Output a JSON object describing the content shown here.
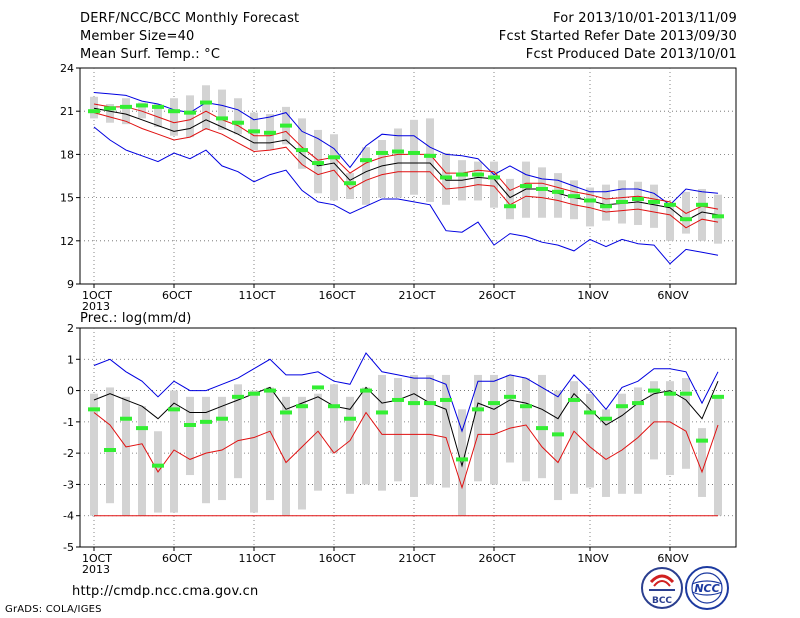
{
  "header": {
    "left_line1": "DERF/NCC/BCC Monthly Forecast",
    "left_line2": "Member Size=40",
    "left_line3": "Mean Surf. Temp.: °C",
    "right_line1": "For 2013/10/01-2013/11/09",
    "right_line2": "Fcst Started Refer Date 2013/09/30",
    "right_line3": "Fcst Produced Date 2013/10/01"
  },
  "precip_label": "Prec.: log(mm/d)",
  "url": "http://cmdp.ncc.cma.gov.cn",
  "grads_credit": "GrADS: COLA/IGES",
  "logos": {
    "bcc": "BCC",
    "ncc": "NCC"
  },
  "colors": {
    "bar": "#d3d3d3",
    "mean": "#000000",
    "spread": "#e01010",
    "envelope": "#0000e0",
    "obs": "#33ee33",
    "grid": "#666666"
  },
  "chart_data": [
    {
      "type": "line",
      "title": "Mean Surf. Temp.: °C",
      "ylim": [
        9,
        24
      ],
      "yticks": [
        9,
        12,
        15,
        18,
        21,
        24
      ],
      "xtick_labels": [
        "1OCT",
        "6OCT",
        "11OCT",
        "16OCT",
        "21OCT",
        "26OCT",
        "1NOV",
        "6NOV"
      ],
      "xtick_days": [
        1,
        6,
        11,
        16,
        21,
        26,
        32,
        37
      ],
      "year_label": "2013",
      "grid": true,
      "days": [
        1,
        2,
        3,
        4,
        5,
        6,
        7,
        8,
        9,
        10,
        11,
        12,
        13,
        14,
        15,
        16,
        17,
        18,
        19,
        20,
        21,
        22,
        23,
        24,
        25,
        26,
        27,
        28,
        29,
        30,
        31,
        32,
        33,
        34,
        35,
        36,
        37,
        38,
        39,
        40
      ],
      "series": [
        {
          "role": "mean",
          "values": [
            21.2,
            21.0,
            20.8,
            20.4,
            20.0,
            19.6,
            19.8,
            20.4,
            19.9,
            19.4,
            18.8,
            18.8,
            19.0,
            18.0,
            17.2,
            17.4,
            16.2,
            16.8,
            17.2,
            17.4,
            17.4,
            17.4,
            16.2,
            16.2,
            16.4,
            16.3,
            15.0,
            15.6,
            15.6,
            15.3,
            15.0,
            14.8,
            14.5,
            14.6,
            14.7,
            14.5,
            14.3,
            13.4,
            14.0,
            13.8
          ]
        },
        {
          "role": "spread_upper",
          "values": [
            21.5,
            21.3,
            21.3,
            21.0,
            20.6,
            20.2,
            20.4,
            21.0,
            20.4,
            20.0,
            19.3,
            19.3,
            19.6,
            18.5,
            17.6,
            17.8,
            16.7,
            17.4,
            17.8,
            18.0,
            18.0,
            18.0,
            16.7,
            16.7,
            16.9,
            16.8,
            15.5,
            16.0,
            16.0,
            15.7,
            15.4,
            15.2,
            14.9,
            15.0,
            15.1,
            14.9,
            14.7,
            13.9,
            14.4,
            14.2
          ]
        },
        {
          "role": "spread_lower",
          "values": [
            20.9,
            20.6,
            20.3,
            19.8,
            19.4,
            19.0,
            19.2,
            19.8,
            19.4,
            18.8,
            18.2,
            18.3,
            18.5,
            17.3,
            16.6,
            16.9,
            15.6,
            16.2,
            16.6,
            16.8,
            16.8,
            16.8,
            15.6,
            15.7,
            15.9,
            15.8,
            14.5,
            15.1,
            15.0,
            14.8,
            14.5,
            14.3,
            14.0,
            14.1,
            14.2,
            14.0,
            13.8,
            12.9,
            13.5,
            13.3
          ]
        },
        {
          "role": "envelope_max",
          "values": [
            22.3,
            22.2,
            22.1,
            21.7,
            21.5,
            21.1,
            20.9,
            21.6,
            21.4,
            21.1,
            20.4,
            20.6,
            20.9,
            19.6,
            19.1,
            18.4,
            17.1,
            18.6,
            19.4,
            19.3,
            19.3,
            18.5,
            18.0,
            17.9,
            17.7,
            16.6,
            17.2,
            16.6,
            16.3,
            16.2,
            15.8,
            15.4,
            15.4,
            15.6,
            15.6,
            15.3,
            14.5,
            15.6,
            15.4,
            15.3
          ]
        },
        {
          "role": "envelope_min",
          "values": [
            19.9,
            19.0,
            18.3,
            17.9,
            17.5,
            18.1,
            17.7,
            18.3,
            17.2,
            16.8,
            16.1,
            16.6,
            16.9,
            15.5,
            14.7,
            14.5,
            13.9,
            14.4,
            14.9,
            14.9,
            14.7,
            14.5,
            12.7,
            12.6,
            13.3,
            11.7,
            12.5,
            12.3,
            11.9,
            11.7,
            11.3,
            12.1,
            11.6,
            12.1,
            11.8,
            11.7,
            10.4,
            11.4,
            11.2,
            11.0
          ]
        },
        {
          "role": "member_max",
          "values": [
            22.0,
            21.5,
            21.9,
            21.6,
            21.5,
            21.9,
            22.1,
            22.8,
            22.5,
            21.9,
            20.9,
            20.8,
            21.3,
            20.5,
            19.7,
            19.4,
            16.7,
            18.5,
            19.0,
            19.8,
            20.4,
            20.5,
            18.1,
            17.6,
            17.5,
            17.5,
            16.3,
            17.5,
            17.1,
            16.7,
            16.2,
            15.7,
            15.9,
            16.2,
            16.1,
            15.9,
            14.6,
            15.4,
            15.6,
            15.2
          ]
        },
        {
          "role": "member_min",
          "values": [
            20.5,
            20.2,
            20.1,
            20.5,
            19.9,
            19.3,
            19.2,
            19.7,
            19.7,
            19.4,
            18.3,
            18.3,
            18.7,
            17.0,
            15.3,
            14.8,
            14.9,
            14.5,
            15.0,
            15.0,
            15.2,
            14.7,
            14.5,
            14.8,
            14.8,
            14.3,
            13.5,
            13.6,
            13.6,
            13.6,
            13.5,
            13.0,
            13.4,
            13.2,
            13.1,
            12.9,
            12.0,
            12.5,
            12.0,
            11.8
          ]
        },
        {
          "role": "observed",
          "values": [
            21.0,
            21.2,
            21.3,
            21.4,
            21.3,
            21.0,
            20.9,
            21.6,
            20.5,
            20.2,
            19.6,
            19.5,
            20.0,
            18.3,
            17.4,
            17.8,
            16.0,
            17.6,
            18.1,
            18.2,
            18.1,
            17.9,
            16.4,
            16.6,
            16.6,
            16.4,
            14.4,
            15.8,
            15.6,
            15.4,
            15.1,
            14.8,
            14.4,
            14.7,
            14.9,
            14.7,
            14.5,
            13.5,
            14.5,
            13.7
          ]
        }
      ]
    },
    {
      "type": "line",
      "title": "Prec.: log(mm/d)",
      "ylim": [
        -5,
        2
      ],
      "yticks": [
        -5,
        -4,
        -3,
        -2,
        -1,
        0,
        1,
        2
      ],
      "xtick_labels": [
        "1OCT",
        "6OCT",
        "11OCT",
        "16OCT",
        "21OCT",
        "26OCT",
        "1NOV",
        "6NOV"
      ],
      "xtick_days": [
        1,
        6,
        11,
        16,
        21,
        26,
        32,
        37
      ],
      "year_label": "2013",
      "grid": true,
      "days": [
        1,
        2,
        3,
        4,
        5,
        6,
        7,
        8,
        9,
        10,
        11,
        12,
        13,
        14,
        15,
        16,
        17,
        18,
        19,
        20,
        21,
        22,
        23,
        24,
        25,
        26,
        27,
        28,
        29,
        30,
        31,
        32,
        33,
        34,
        35,
        36,
        37,
        38,
        39,
        40
      ],
      "series": [
        {
          "role": "mean",
          "values": [
            -0.3,
            -0.1,
            -0.3,
            -0.5,
            -0.9,
            -0.4,
            -0.7,
            -0.7,
            -0.5,
            -0.3,
            -0.1,
            0.1,
            -0.6,
            -0.4,
            -0.2,
            -0.5,
            -0.6,
            0.1,
            -0.4,
            -0.3,
            -0.1,
            -0.4,
            -0.6,
            -2.4,
            -0.4,
            -0.6,
            -0.3,
            -0.4,
            -0.6,
            -0.9,
            -0.1,
            -0.6,
            -1.1,
            -0.8,
            -0.4,
            -0.1,
            0.0,
            -0.3,
            -0.9,
            0.3
          ]
        },
        {
          "role": "spread_lower",
          "values": [
            -0.7,
            -1.1,
            -1.8,
            -1.7,
            -2.6,
            -1.9,
            -2.2,
            -2.0,
            -1.9,
            -1.6,
            -1.5,
            -1.3,
            -2.3,
            -1.8,
            -1.3,
            -2.0,
            -1.6,
            -0.7,
            -1.4,
            -1.4,
            -1.4,
            -1.4,
            -1.5,
            -3.1,
            -1.4,
            -1.4,
            -1.2,
            -1.1,
            -1.8,
            -2.3,
            -1.3,
            -1.8,
            -2.2,
            -1.9,
            -1.5,
            -1.0,
            -1.0,
            -1.3,
            -2.6,
            -1.1
          ]
        },
        {
          "role": "envelope_max",
          "values": [
            0.8,
            1.0,
            0.6,
            0.3,
            -0.2,
            0.3,
            0.0,
            0.0,
            0.2,
            0.4,
            0.7,
            1.0,
            0.5,
            0.5,
            0.6,
            0.3,
            0.2,
            1.2,
            0.6,
            0.5,
            0.4,
            0.4,
            0.2,
            -1.3,
            0.3,
            0.3,
            0.5,
            0.4,
            0.1,
            -0.2,
            0.5,
            0.0,
            -0.6,
            0.1,
            0.3,
            0.7,
            0.7,
            0.6,
            -0.4,
            0.6
          ]
        },
        {
          "role": "lower_floor",
          "values": [
            -4.0,
            -4.0,
            -4.0,
            -4.0,
            -4.0,
            -4.0,
            -4.0,
            -4.0,
            -4.0,
            -4.0,
            -4.0,
            -4.0,
            -4.0,
            -4.0,
            -4.0,
            -4.0,
            -4.0,
            -4.0,
            -4.0,
            -4.0,
            -4.0,
            -4.0,
            -4.0,
            -4.0,
            -4.0,
            -4.0,
            -4.0,
            -4.0,
            -4.0,
            -4.0,
            -4.0,
            -4.0,
            -4.0,
            -4.0,
            -4.0,
            -4.0,
            -4.0,
            -4.0,
            -4.0,
            -4.0
          ]
        },
        {
          "role": "member_max",
          "values": [
            -0.1,
            0.1,
            -0.2,
            -0.5,
            -1.3,
            0.0,
            -0.2,
            -0.2,
            -0.2,
            0.2,
            0.0,
            0.1,
            -0.2,
            -0.2,
            -0.1,
            0.2,
            -0.2,
            0.1,
            0.5,
            0.4,
            0.5,
            0.5,
            0.5,
            -0.6,
            0.5,
            0.5,
            0.5,
            0.4,
            0.5,
            0.0,
            0.3,
            -0.1,
            -0.6,
            -0.1,
            0.1,
            0.3,
            0.3,
            0.4,
            -1.2,
            -0.2
          ]
        },
        {
          "role": "member_min",
          "values": [
            -4.0,
            -3.6,
            -4.0,
            -4.0,
            -3.9,
            -3.9,
            -2.7,
            -3.6,
            -3.5,
            -2.8,
            -3.9,
            -3.5,
            -4.0,
            -3.8,
            -3.2,
            -2.0,
            -3.3,
            -3.0,
            -3.2,
            -2.9,
            -3.4,
            -3.0,
            -3.1,
            -4.0,
            -2.9,
            -3.0,
            -2.3,
            -2.9,
            -2.8,
            -3.5,
            -3.3,
            -3.1,
            -3.4,
            -3.3,
            -3.3,
            -2.2,
            -2.7,
            -2.5,
            -3.4,
            -4.0
          ]
        },
        {
          "role": "observed",
          "values": [
            -0.6,
            -1.9,
            -0.9,
            -1.2,
            -2.4,
            -0.6,
            -1.1,
            -1.0,
            -0.9,
            -0.2,
            -0.1,
            0.0,
            -0.7,
            -0.5,
            0.1,
            -0.5,
            -0.9,
            0.0,
            -0.7,
            -0.3,
            -0.4,
            -0.4,
            -0.3,
            -2.2,
            -0.6,
            -0.4,
            -0.2,
            -0.5,
            -1.2,
            -1.4,
            -0.3,
            -0.7,
            -0.9,
            -0.5,
            -0.4,
            -0.0,
            -0.1,
            -0.1,
            -1.6,
            -0.2
          ]
        }
      ]
    }
  ]
}
